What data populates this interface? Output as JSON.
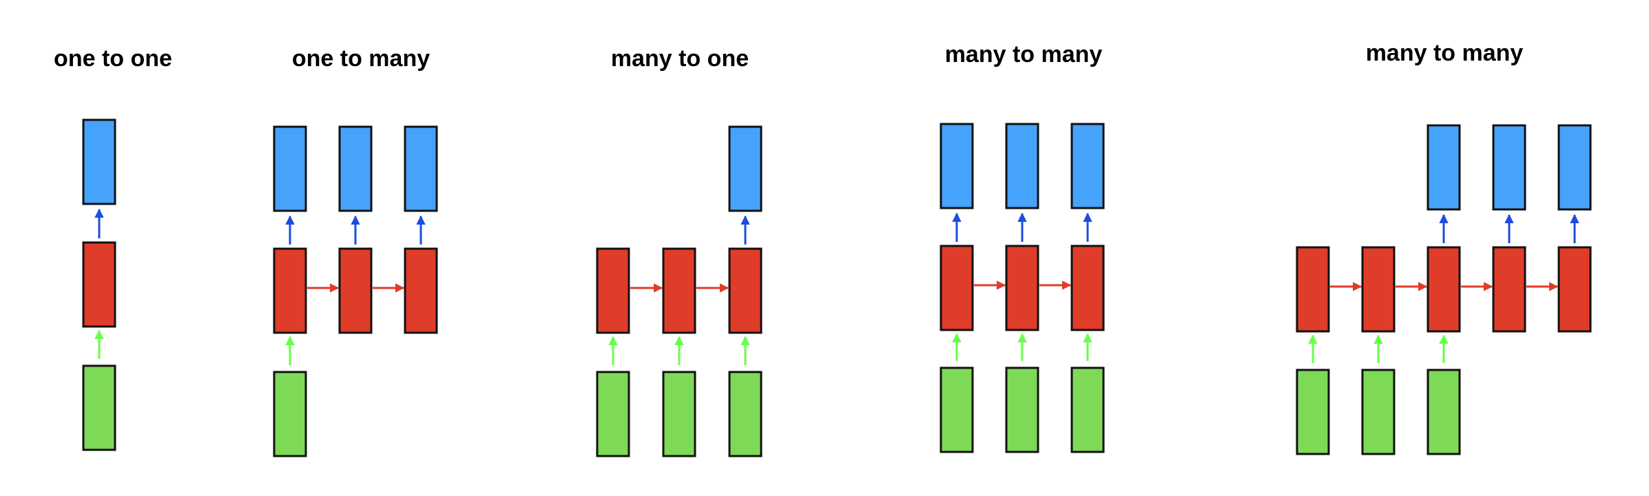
{
  "panels": [
    {
      "title": "one to one",
      "columns": 1,
      "inputs": [
        1
      ],
      "outputs": [
        1
      ]
    },
    {
      "title": "one to many",
      "columns": 3,
      "inputs": [
        1,
        0,
        0
      ],
      "outputs": [
        1,
        1,
        1
      ]
    },
    {
      "title": "many to one",
      "columns": 3,
      "inputs": [
        1,
        1,
        1
      ],
      "outputs": [
        0,
        0,
        1
      ]
    },
    {
      "title": "many to many",
      "columns": 3,
      "inputs": [
        1,
        1,
        1
      ],
      "outputs": [
        1,
        1,
        1
      ]
    },
    {
      "title": "many to many",
      "columns": 5,
      "inputs": [
        1,
        1,
        1,
        0,
        0
      ],
      "outputs": [
        0,
        0,
        1,
        1,
        1
      ]
    }
  ],
  "colors": {
    "input": "#7ed957",
    "hidden": "#e03c2a",
    "output": "#46a3fb",
    "input_arrow": "#66ff44",
    "hidden_arrow": "#e03c2a",
    "output_arrow": "#1a4de0",
    "stroke": "#111111"
  }
}
